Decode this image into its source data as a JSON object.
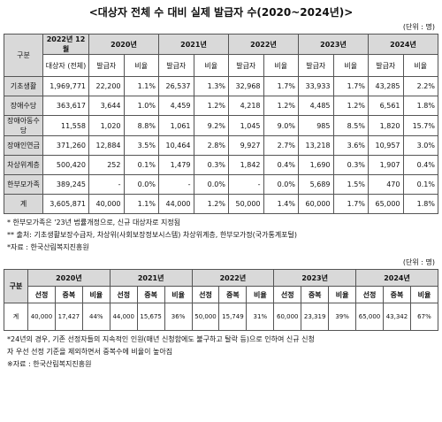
{
  "title": "<대상자 전체 수 대비 실제 발급자 수(2020~2024년)>",
  "table1": {
    "unit": "(단위 : 명)",
    "header": {
      "category": "구분",
      "period": "2022년 12월",
      "target": "대상자 (전체)",
      "years": [
        "2020년",
        "2021년",
        "2022년",
        "2023년",
        "2024년"
      ],
      "issued": "발급자",
      "ratio": "비율"
    },
    "rows": [
      {
        "label": "기초생활",
        "target": "1,969,771",
        "cells": [
          [
            "22,200",
            "1.1%"
          ],
          [
            "26,537",
            "1.3%"
          ],
          [
            "32,968",
            "1.7%"
          ],
          [
            "33,933",
            "1.7%"
          ],
          [
            "43,285",
            "2.2%"
          ]
        ]
      },
      {
        "label": "장애수당",
        "target": "363,617",
        "cells": [
          [
            "3,644",
            "1.0%"
          ],
          [
            "4,459",
            "1.2%"
          ],
          [
            "4,218",
            "1.2%"
          ],
          [
            "4,485",
            "1.2%"
          ],
          [
            "6,561",
            "1.8%"
          ]
        ]
      },
      {
        "label": "장애아동수당",
        "target": "11,558",
        "cells": [
          [
            "1,020",
            "8.8%"
          ],
          [
            "1,061",
            "9.2%"
          ],
          [
            "1,045",
            "9.0%"
          ],
          [
            "985",
            "8.5%"
          ],
          [
            "1,820",
            "15.7%"
          ]
        ]
      },
      {
        "label": "장애인연금",
        "target": "371,260",
        "cells": [
          [
            "12,884",
            "3.5%"
          ],
          [
            "10,464",
            "2.8%"
          ],
          [
            "9,927",
            "2.7%"
          ],
          [
            "13,218",
            "3.6%"
          ],
          [
            "10,957",
            "3.0%"
          ]
        ]
      },
      {
        "label": "차상위계층",
        "target": "500,420",
        "cells": [
          [
            "252",
            "0.1%"
          ],
          [
            "1,479",
            "0.3%"
          ],
          [
            "1,842",
            "0.4%"
          ],
          [
            "1,690",
            "0.3%"
          ],
          [
            "1,907",
            "0.4%"
          ]
        ]
      },
      {
        "label": "한부모가족",
        "target": "389,245",
        "cells": [
          [
            "-",
            "0.0%"
          ],
          [
            "-",
            "0.0%"
          ],
          [
            "-",
            "0.0%"
          ],
          [
            "5,689",
            "1.5%"
          ],
          [
            "470",
            "0.1%"
          ]
        ]
      },
      {
        "label": "계",
        "target": "3,605,871",
        "cells": [
          [
            "40,000",
            "1.1%"
          ],
          [
            "44,000",
            "1.2%"
          ],
          [
            "50,000",
            "1.4%"
          ],
          [
            "60,000",
            "1.7%"
          ],
          [
            "65,000",
            "1.8%"
          ]
        ]
      }
    ],
    "notes": [
      "* 한부모가족은 '23년 법률개정으로, 신규 대상자로 지정됨",
      "** 출처: 기초생활보장수급자, 차상위(사회보장정보시스템) 차상위계층, 한부모가정(국가통계포털)",
      "*자료 : 한국산림복지진흥원"
    ]
  },
  "table2": {
    "unit": "(단위 : 명)",
    "header": {
      "category": "구분",
      "years": [
        "2020년",
        "2021년",
        "2022년",
        "2023년",
        "2024년"
      ],
      "selected": "선정",
      "duplicate": "중복",
      "ratio": "비율"
    },
    "rows": [
      {
        "label": "계",
        "cells": [
          [
            "40,000",
            "17,427",
            "44%"
          ],
          [
            "44,000",
            "15,675",
            "36%"
          ],
          [
            "50,000",
            "15,749",
            "31%"
          ],
          [
            "60,000",
            "23,319",
            "39%"
          ],
          [
            "65,000",
            "43,342",
            "67%"
          ]
        ]
      }
    ],
    "notes": [
      "*24년의 경우, 기존 선정자들의 지속적인 인원(매년 신청함에도 불구하고 탈락 등)으로 인하여 신규 신청",
      "자 우선 선정 기준을 제외하면서 중복수에 비율이 높아짐",
      "※자료 : 한국산림복지진흥원"
    ]
  }
}
